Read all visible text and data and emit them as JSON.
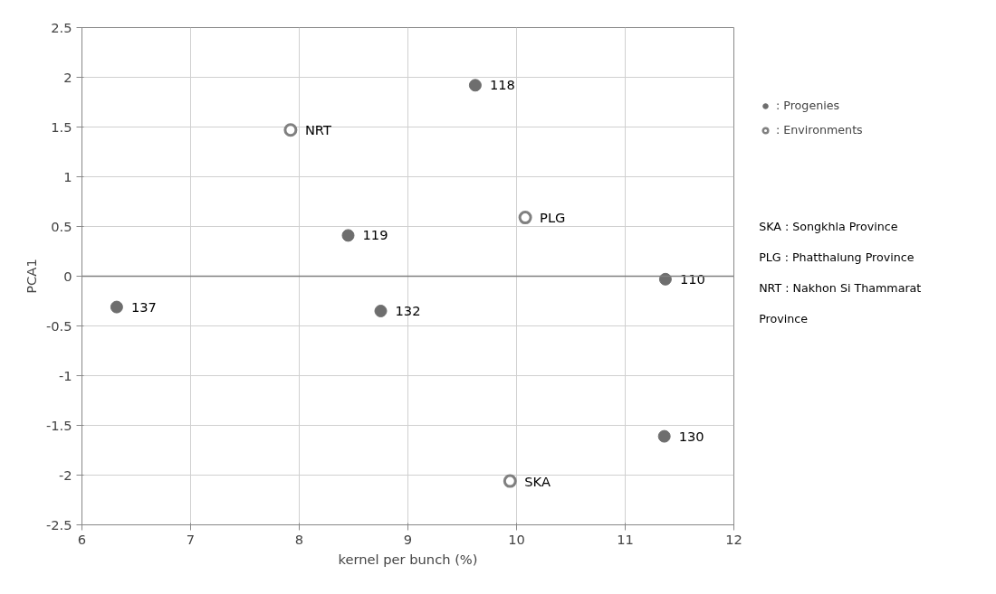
{
  "chart_data": {
    "type": "scatter",
    "xlabel": "kernel per bunch (%)",
    "ylabel": "PCA1",
    "xlim": [
      6,
      12
    ],
    "xticks": [
      6,
      7,
      8,
      9,
      10,
      11,
      12
    ],
    "ylim": [
      -2.5,
      2.5
    ],
    "yticks": [
      -2.5,
      -2,
      -1.5,
      -1,
      -0.5,
      0,
      0.5,
      1,
      1.5,
      2,
      2.5
    ],
    "grid": true,
    "legend": "right",
    "series": [
      {
        "name": ": Progenies",
        "color": "#6e6e6e",
        "marker": "circle",
        "x": [
          9.62,
          8.45,
          11.37,
          6.32,
          8.75,
          11.36
        ],
        "values": [
          1.92,
          0.41,
          -0.03,
          -0.31,
          -0.35,
          -1.61
        ]
      },
      {
        "name": ": Environments",
        "color": "#808080",
        "marker": "circle_open",
        "x": [
          7.92,
          10.08,
          9.94
        ],
        "values": [
          1.47,
          0.59,
          -2.06
        ]
      }
    ],
    "ref_lines": [
      {
        "axis": "y",
        "value": 0,
        "label": null,
        "color": "#808080"
      }
    ],
    "annotations": [
      {
        "text": "118",
        "x": 9.62,
        "y": 1.92
      },
      {
        "text": "119",
        "x": 8.45,
        "y": 0.41
      },
      {
        "text": "110",
        "x": 11.37,
        "y": -0.03
      },
      {
        "text": "137",
        "x": 6.32,
        "y": -0.31
      },
      {
        "text": "132",
        "x": 8.75,
        "y": -0.35
      },
      {
        "text": "130",
        "x": 11.36,
        "y": -1.61
      },
      {
        "text": "NRT",
        "x": 7.92,
        "y": 1.47
      },
      {
        "text": "PLG",
        "x": 10.08,
        "y": 0.59
      },
      {
        "text": "SKA",
        "x": 9.94,
        "y": -2.06
      },
      "SKA : Songkhla Province",
      "PLG : Phatthalung Province",
      "NRT : Nakhon Si Thammarat Province"
    ]
  }
}
